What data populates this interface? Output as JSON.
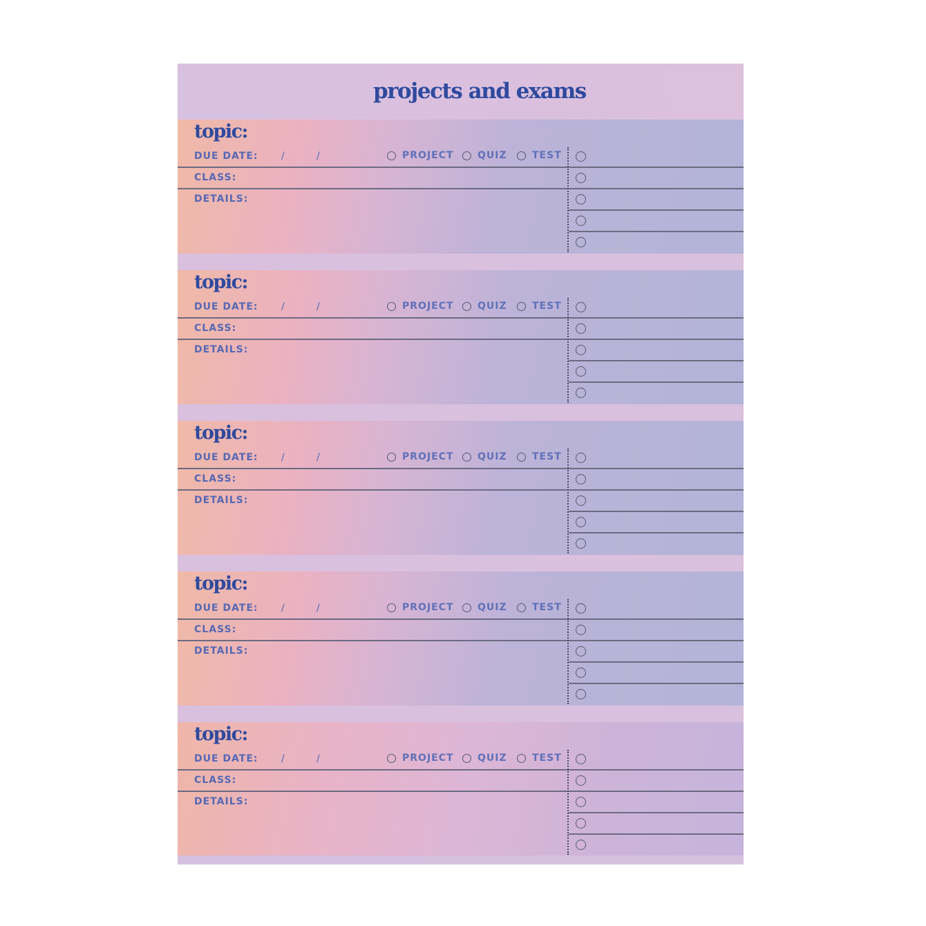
{
  "header": {
    "title": "projects and exams"
  },
  "section_labels": {
    "topic": "topic:",
    "due_date": "DUE DATE:",
    "date_slash": "/",
    "class": "CLASS:",
    "details": "DETAILS:",
    "option_project": "PROJECT",
    "option_quiz": "QUIZ",
    "option_test": "TEST"
  },
  "sections_count": 5,
  "checklist_circles_per_section": 5,
  "colors": {
    "title": "#2f4a9e",
    "label": "#5568b4",
    "peach": "#f0b9a6",
    "pink": "#eab2c2",
    "lavender": "#b2b4d8",
    "header_bg": "#d8c0e0"
  }
}
